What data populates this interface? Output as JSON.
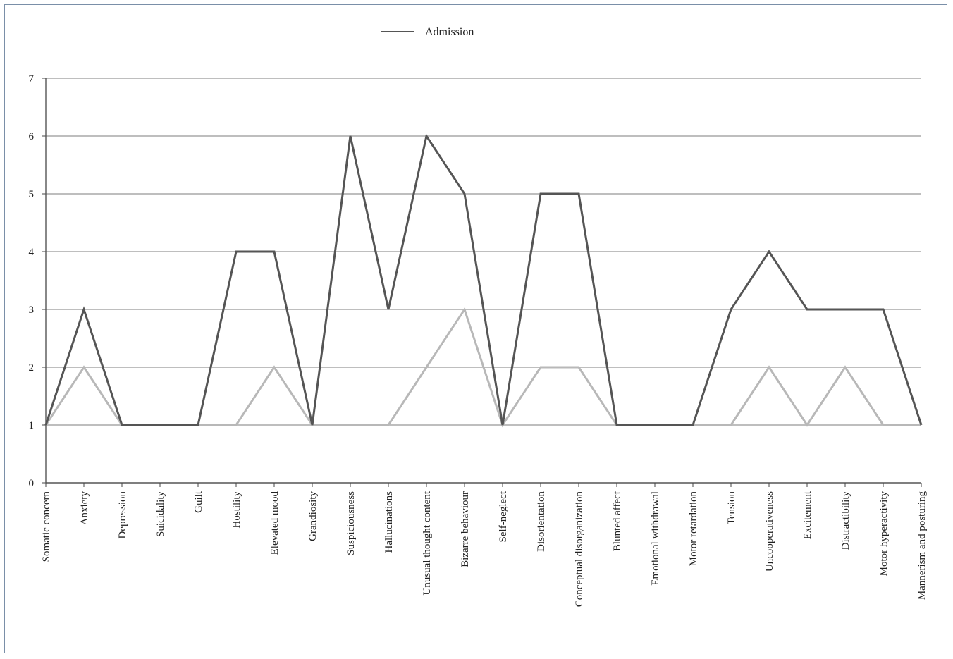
{
  "chart_data": {
    "type": "line",
    "title": "",
    "xlabel": "",
    "ylabel": "",
    "ylim": [
      0,
      7
    ],
    "yticks": [
      0,
      1,
      2,
      3,
      4,
      5,
      6,
      7
    ],
    "grid": true,
    "legend": {
      "placement": "top-center",
      "entries": [
        "Admission"
      ]
    },
    "categories": [
      "Somatic concern",
      "Anxiety",
      "Depression",
      "Suicidality",
      "Guilt",
      "Hostility",
      "Elevated mood",
      "Grandiosity",
      "Suspiciousness",
      "Hallucinations",
      "Unusual thought content",
      "Bizarre behaviour",
      "Self-neglect",
      "Disorientation",
      "Conceptual disorganization",
      "Blunted affect",
      "Emotional withdrawal",
      "Motor retardation",
      "Tension",
      "Uncooperativeness",
      "Excitement",
      "Distractibility",
      "Motor hyperactivity",
      "Mannerism and posturing"
    ],
    "series": [
      {
        "name": "Admission",
        "color": "#555555",
        "values": [
          1,
          3,
          1,
          1,
          1,
          4,
          4,
          1,
          6,
          3,
          6,
          5,
          1,
          5,
          5,
          1,
          1,
          1,
          3,
          4,
          3,
          3,
          3,
          1
        ]
      },
      {
        "color": "#b8b8b8",
        "values": [
          1,
          2,
          1,
          1,
          1,
          1,
          2,
          1,
          1,
          1,
          2,
          3,
          1,
          2,
          2,
          1,
          1,
          1,
          1,
          2,
          1,
          2,
          1,
          1
        ]
      }
    ]
  }
}
